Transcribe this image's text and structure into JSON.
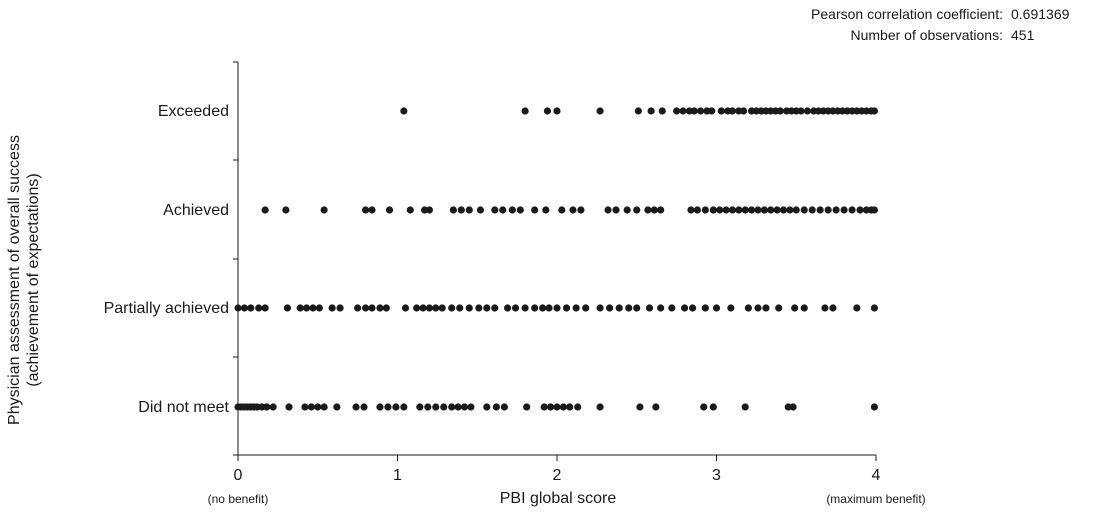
{
  "stats": {
    "pearson_label": "Pearson correlation coefficient:",
    "pearson_value": "0.691369",
    "n_label": "Number of observations:",
    "n_value": "451"
  },
  "chart_data": {
    "type": "scatter",
    "title": "",
    "xlabel": "PBI global score",
    "ylabel": "Physician assessment of overall success (achievement of expectations)",
    "ylabel_lines": [
      "Physician assessment of overall success",
      "(achievement of expectations)"
    ],
    "xlim": [
      0,
      4
    ],
    "xticks": [
      0,
      1,
      2,
      3,
      4
    ],
    "x_annotations": {
      "left": "(no benefit)",
      "right": "(maximum benefit)"
    },
    "categories": [
      "Did not meet",
      "Partially achieved",
      "Achieved",
      "Exceeded"
    ],
    "grid": false,
    "point_color": "#1a1a1a",
    "series": [
      {
        "category": "Exceeded",
        "x": [
          1.04,
          1.8,
          1.94,
          2.0,
          2.27,
          2.51,
          2.59,
          2.66,
          2.75,
          2.79,
          2.83,
          2.86,
          2.9,
          2.94,
          2.97,
          3.03,
          3.07,
          3.1,
          3.14,
          3.17,
          3.22,
          3.25,
          3.28,
          3.31,
          3.34,
          3.37,
          3.4,
          3.44,
          3.47,
          3.5,
          3.53,
          3.57,
          3.61,
          3.64,
          3.67,
          3.7,
          3.73,
          3.76,
          3.79,
          3.82,
          3.85,
          3.88,
          3.91,
          3.94,
          3.97,
          3.99
        ]
      },
      {
        "category": "Achieved",
        "x": [
          0.17,
          0.3,
          0.54,
          0.8,
          0.84,
          0.95,
          1.08,
          1.17,
          1.2,
          1.35,
          1.4,
          1.45,
          1.52,
          1.61,
          1.66,
          1.72,
          1.77,
          1.86,
          1.93,
          2.03,
          2.1,
          2.15,
          2.32,
          2.37,
          2.44,
          2.5,
          2.57,
          2.61,
          2.65,
          2.84,
          2.88,
          2.93,
          2.98,
          3.02,
          3.06,
          3.1,
          3.14,
          3.18,
          3.22,
          3.26,
          3.3,
          3.34,
          3.38,
          3.42,
          3.46,
          3.5,
          3.55,
          3.6,
          3.65,
          3.7,
          3.75,
          3.8,
          3.85,
          3.9,
          3.94,
          3.97,
          3.99
        ]
      },
      {
        "category": "Partially achieved",
        "x": [
          0.0,
          0.04,
          0.08,
          0.13,
          0.17,
          0.31,
          0.39,
          0.43,
          0.47,
          0.51,
          0.59,
          0.64,
          0.75,
          0.8,
          0.84,
          0.89,
          0.93,
          1.05,
          1.12,
          1.16,
          1.2,
          1.24,
          1.28,
          1.34,
          1.39,
          1.45,
          1.51,
          1.56,
          1.61,
          1.69,
          1.74,
          1.8,
          1.86,
          1.91,
          1.95,
          2.0,
          2.06,
          2.12,
          2.18,
          2.27,
          2.33,
          2.39,
          2.45,
          2.5,
          2.58,
          2.65,
          2.72,
          2.8,
          2.85,
          2.93,
          3.0,
          3.09,
          3.2,
          3.26,
          3.31,
          3.39,
          3.49,
          3.55,
          3.68,
          3.73,
          3.88,
          3.99
        ]
      },
      {
        "category": "Did not meet",
        "x": [
          0.0,
          0.02,
          0.04,
          0.06,
          0.08,
          0.1,
          0.12,
          0.15,
          0.18,
          0.22,
          0.32,
          0.42,
          0.46,
          0.5,
          0.54,
          0.62,
          0.74,
          0.79,
          0.89,
          0.94,
          0.99,
          1.04,
          1.14,
          1.19,
          1.24,
          1.29,
          1.34,
          1.38,
          1.42,
          1.46,
          1.56,
          1.62,
          1.67,
          1.81,
          1.92,
          1.96,
          2.0,
          2.04,
          2.08,
          2.13,
          2.27,
          2.52,
          2.62,
          2.92,
          2.98,
          3.18,
          3.45,
          3.48,
          3.99
        ]
      }
    ]
  }
}
